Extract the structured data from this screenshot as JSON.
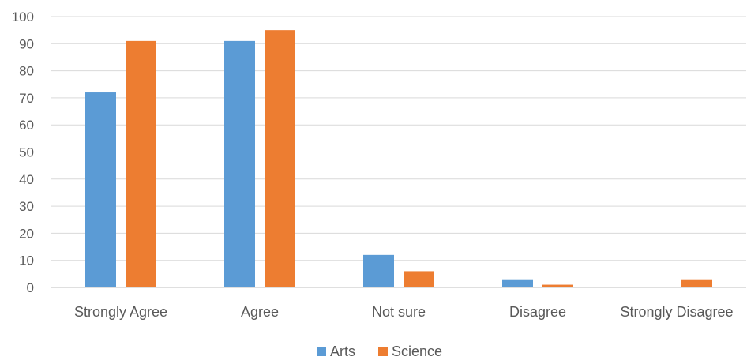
{
  "chart_data": {
    "type": "bar",
    "title": "",
    "xlabel": "",
    "ylabel": "",
    "categories": [
      "Strongly Agree",
      "Agree",
      "Not sure",
      "Disagree",
      "Strongly Disagree"
    ],
    "series": [
      {
        "name": "Arts",
        "color": "#5B9BD5",
        "values": [
          72,
          91,
          12,
          3,
          0
        ]
      },
      {
        "name": "Science",
        "color": "#ED7D31",
        "values": [
          91,
          95,
          6,
          1,
          3
        ]
      }
    ],
    "ylim": [
      0,
      100
    ],
    "yticks": [
      0,
      10,
      20,
      30,
      40,
      50,
      60,
      70,
      80,
      90,
      100
    ],
    "grid": true,
    "legend_position": "bottom"
  }
}
